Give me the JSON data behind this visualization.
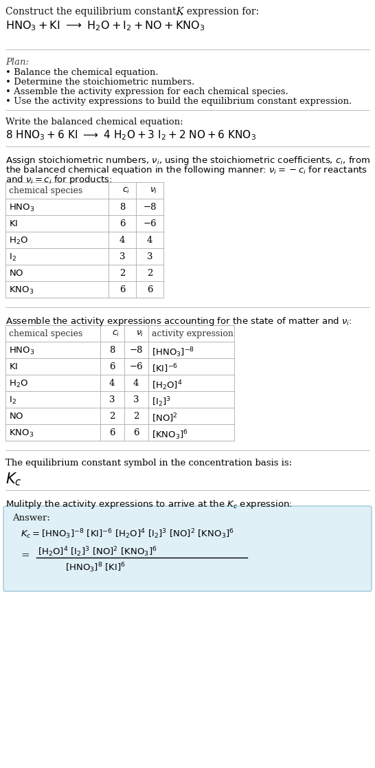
{
  "bg_color": "#ffffff",
  "text_color": "#000000",
  "gray_color": "#555555",
  "plan_bullets": [
    "Balance the chemical equation.",
    "Determine the stoichiometric numbers.",
    "Assemble the activity expression for each chemical species.",
    "Use the activity expressions to build the equilibrium constant expression."
  ],
  "answer_box_color": "#dff0f7",
  "answer_box_border": "#9ec8d8"
}
